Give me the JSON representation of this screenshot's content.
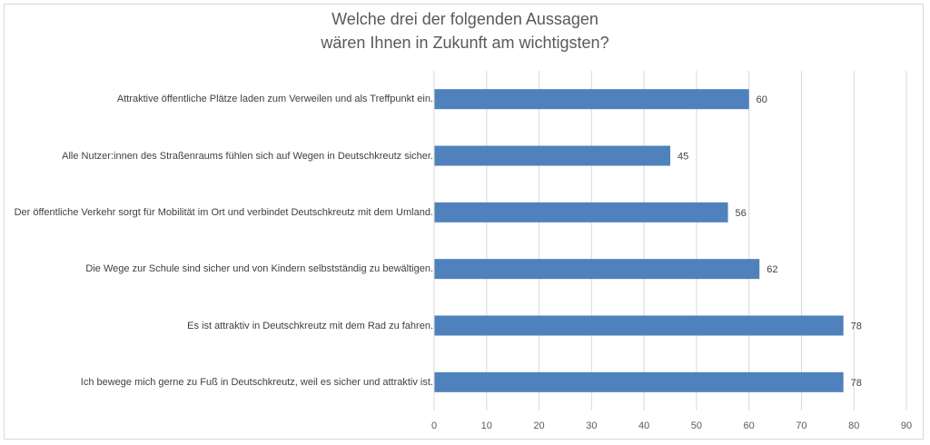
{
  "chart_data": {
    "type": "bar",
    "orientation": "horizontal",
    "title": [
      "Welche drei der folgenden Aussagen",
      "wären Ihnen in Zukunft am wichtigsten?"
    ],
    "categories": [
      "Attraktive öffentliche Plätze laden zum Verweilen und als Treffpunkt ein.",
      "Alle Nutzer:innen des Straßenraums fühlen sich auf Wegen in Deutschkreutz sicher.",
      "Der öffentliche Verkehr sorgt für Mobilität im Ort und verbindet Deutschkreutz mit dem Umland.",
      "Die Wege zur Schule sind sicher und von Kindern selbstständig zu bewältigen.",
      "Es ist attraktiv in Deutschkreutz mit dem Rad zu fahren.",
      "Ich bewege mich gerne zu Fuß in Deutschkreutz, weil es sicher und attraktiv ist."
    ],
    "values": [
      60,
      45,
      56,
      62,
      78,
      78
    ],
    "xlim": [
      0,
      90
    ],
    "xticks": [
      0,
      10,
      20,
      30,
      40,
      50,
      60,
      70,
      80,
      90
    ],
    "grid": true,
    "legend": "none",
    "bar_color": "#4f81bd",
    "data_labels": true
  }
}
